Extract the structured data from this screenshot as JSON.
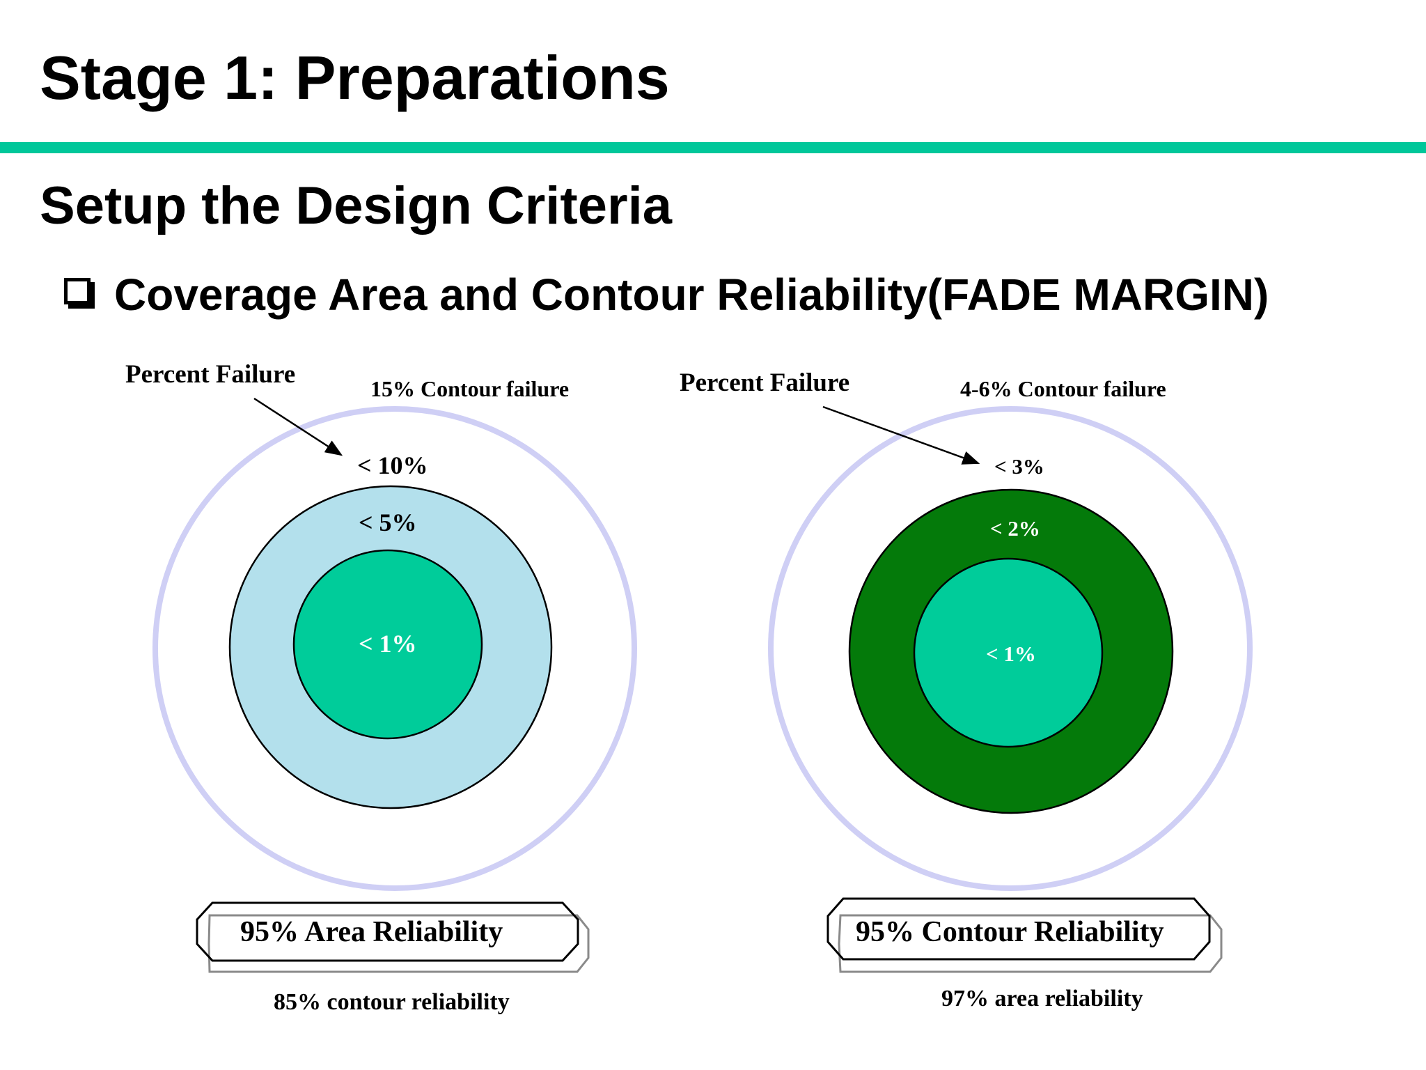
{
  "slide": {
    "title": "Stage 1: Preparations",
    "subtitle": "Setup the Design Criteria",
    "bullet": "Coverage Area and Contour Reliability(FADE MARGIN)"
  },
  "colors": {
    "accent_bar": "#00c79a",
    "outer_ring": "#cfcff5",
    "light_blue_band": "#b3e0ec",
    "dark_green_band": "#047a0a",
    "teal_core": "#00cc9a",
    "circle_outline": "#000000"
  },
  "left_diagram": {
    "pointer_label": "Percent Failure",
    "contour_label": "15% Contour failure",
    "outer_value": "< 10%",
    "middle_value": "< 5%",
    "inner_value": "< 1%",
    "badge": "95% Area Reliability",
    "caption": "85% contour reliability"
  },
  "right_diagram": {
    "pointer_label": "Percent Failure",
    "contour_label": "4-6% Contour failure",
    "outer_value": "< 3%",
    "middle_value": "< 2%",
    "inner_value": "< 1%",
    "badge": "95% Contour Reliability",
    "caption": "97% area reliability"
  }
}
